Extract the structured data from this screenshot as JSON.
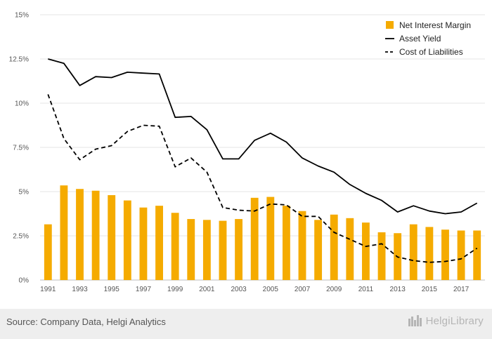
{
  "chart_data": {
    "type": "bar+line",
    "title": "",
    "xlabel": "",
    "ylabel": "",
    "ylim": [
      0,
      15
    ],
    "y_tick_labels": [
      "0%",
      "2.5%",
      "5%",
      "7.5%",
      "10%",
      "12.5%",
      "15%"
    ],
    "y_tick_values": [
      0,
      2.5,
      5,
      7.5,
      10,
      12.5,
      15
    ],
    "categories": [
      1991,
      1992,
      1993,
      1994,
      1995,
      1996,
      1997,
      1998,
      1999,
      2000,
      2001,
      2002,
      2003,
      2004,
      2005,
      2006,
      2007,
      2008,
      2009,
      2010,
      2011,
      2012,
      2013,
      2014,
      2015,
      2016,
      2017,
      2018
    ],
    "x_tick_labels": [
      "1991",
      "1993",
      "1995",
      "1997",
      "1999",
      "2001",
      "2003",
      "2005",
      "2007",
      "2009",
      "2011",
      "2013",
      "2015",
      "2017"
    ],
    "grid": "horizontal",
    "legend_position": "top-right",
    "series": [
      {
        "name": "Net Interest Margin",
        "kind": "bar",
        "color": "#f5ab00",
        "values": [
          3.15,
          5.35,
          5.15,
          5.05,
          4.8,
          4.5,
          4.1,
          4.2,
          3.8,
          3.45,
          3.4,
          3.35,
          3.45,
          4.65,
          4.7,
          4.2,
          3.9,
          3.4,
          3.7,
          3.5,
          3.25,
          2.7,
          2.65,
          3.15,
          3.0,
          2.85,
          2.8,
          2.8
        ]
      },
      {
        "name": "Asset Yield",
        "kind": "line",
        "dash": "solid",
        "color": "#000000",
        "values": [
          12.5,
          12.25,
          11.0,
          11.5,
          11.45,
          11.75,
          11.7,
          11.65,
          9.2,
          9.25,
          8.5,
          6.85,
          6.85,
          7.9,
          8.3,
          7.8,
          6.9,
          6.45,
          6.1,
          5.4,
          4.9,
          4.5,
          3.85,
          4.2,
          3.9,
          3.75,
          3.85,
          4.35
        ]
      },
      {
        "name": "Cost of Liabilities",
        "kind": "line",
        "dash": "dashed",
        "color": "#000000",
        "values": [
          10.5,
          8.0,
          6.8,
          7.4,
          7.6,
          8.4,
          8.75,
          8.7,
          6.4,
          6.9,
          6.1,
          4.1,
          3.95,
          3.9,
          4.3,
          4.25,
          3.6,
          3.6,
          2.7,
          2.3,
          1.9,
          2.05,
          1.3,
          1.1,
          1.0,
          1.05,
          1.2,
          1.8
        ]
      }
    ]
  },
  "footer": {
    "source": "Source: Company Data, Helgi Analytics",
    "brand": "HelgiLibrary"
  },
  "colors": {
    "bar": "#f5ab00",
    "grid": "#e6e6e6",
    "footer_bg": "#eeeeee"
  }
}
